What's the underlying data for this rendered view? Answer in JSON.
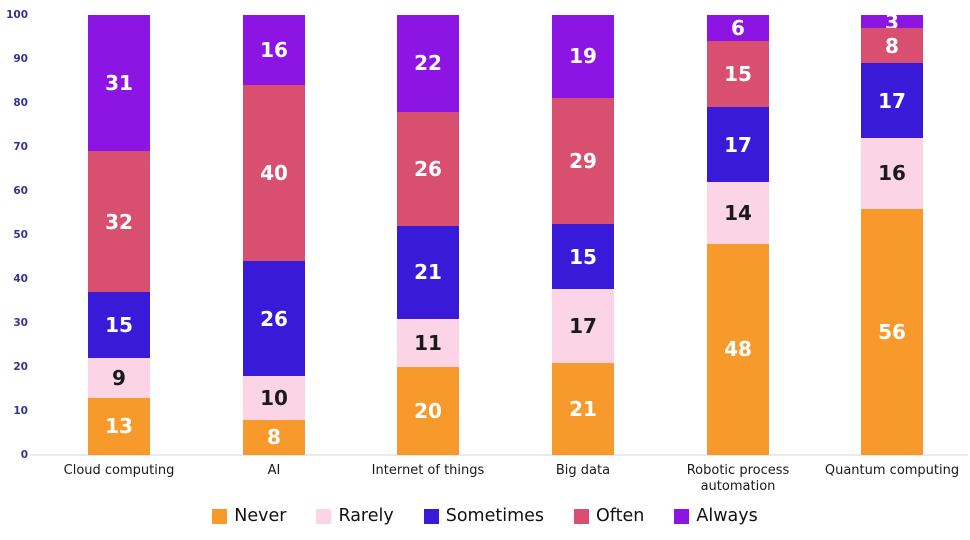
{
  "chart_data": {
    "type": "bar",
    "subtype": "stacked-column",
    "title": "",
    "xlabel": "",
    "ylabel": "",
    "grid": false,
    "categories": [
      "Cloud computing",
      "AI",
      "Internet of things",
      "Big data",
      "Robotic process automation",
      "Quantum computing"
    ],
    "series": [
      {
        "name": "Never",
        "color": "#F8992C",
        "label_color": "#FFFFFF",
        "values": [
          13,
          8,
          20,
          21,
          48,
          56
        ]
      },
      {
        "name": "Rarely",
        "color": "#FBD5E6",
        "label_color": "#1A1A1A",
        "values": [
          9,
          10,
          11,
          17,
          14,
          16
        ]
      },
      {
        "name": "Sometimes",
        "color": "#3A1AD9",
        "label_color": "#FFFFFF",
        "values": [
          15,
          26,
          21,
          15,
          17,
          17
        ]
      },
      {
        "name": "Often",
        "color": "#D94F70",
        "label_color": "#FFFFFF",
        "values": [
          32,
          40,
          26,
          29,
          15,
          8
        ]
      },
      {
        "name": "Always",
        "color": "#8D15E4",
        "label_color": "#FFFFFF",
        "values": [
          31,
          16,
          22,
          19,
          6,
          3
        ]
      }
    ],
    "y_axis": {
      "min": 0,
      "max": 100,
      "step": 10,
      "tick_labels": [
        "0",
        "10",
        "20",
        "30",
        "40",
        "50",
        "60",
        "70",
        "80",
        "90",
        "100"
      ],
      "tick_color": "#333399"
    },
    "legend": {
      "position": "bottom",
      "entries": [
        "Never",
        "Rarely",
        "Sometimes",
        "Often",
        "Always"
      ]
    },
    "baseline_color": "#EAEAF3"
  }
}
